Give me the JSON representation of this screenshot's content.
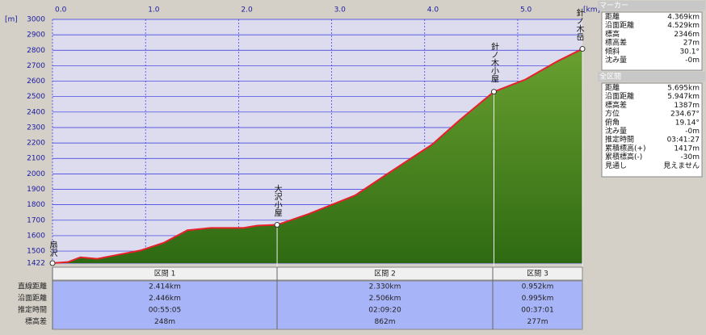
{
  "chart_data": {
    "type": "area",
    "y_label": "[m]",
    "x_label": "[km]",
    "x": [
      0,
      0.17,
      0.3,
      0.48,
      0.65,
      0.95,
      1.2,
      1.45,
      1.7,
      2.05,
      2.2,
      2.414,
      2.75,
      3.0,
      3.25,
      3.6,
      4.08,
      4.38,
      4.744,
      5.08,
      5.43,
      5.695
    ],
    "values": [
      1422,
      1430,
      1460,
      1450,
      1470,
      1505,
      1555,
      1635,
      1650,
      1650,
      1665,
      1670,
      1740,
      1800,
      1860,
      2000,
      2190,
      2350,
      2532,
      2610,
      2730,
      2809
    ],
    "color": "#e8202a",
    "fill_color": "#6aa030",
    "xlim": [
      0,
      5.695
    ],
    "ylim": [
      1422,
      3000
    ],
    "xticks": [
      {
        "value": 0,
        "label": "0.0"
      },
      {
        "value": 1,
        "label": "1.0"
      },
      {
        "value": 2,
        "label": "2.0"
      },
      {
        "value": 3,
        "label": "3.0"
      },
      {
        "value": 4,
        "label": "4.0"
      },
      {
        "value": 5,
        "label": "5.0"
      }
    ],
    "yticks": [
      1422,
      1500,
      1600,
      1700,
      1800,
      1900,
      2000,
      2100,
      2200,
      2300,
      2400,
      2500,
      2600,
      2700,
      2800,
      2900,
      3000
    ],
    "grid": true,
    "waypoints": [
      {
        "label": "扇沢",
        "x": 0,
        "y": 1422
      },
      {
        "label": "大沢小屋",
        "x": 2.414,
        "y": 1670
      },
      {
        "label": "針ノ木小屋",
        "x": 4.744,
        "y": 2532
      },
      {
        "label": "針ノ木岳",
        "x": 5.695,
        "y": 2809
      }
    ]
  },
  "table": {
    "header": [
      "区間 1",
      "区間 2",
      "区間 3"
    ],
    "rows": [
      {
        "label": "直線距離",
        "cells": [
          "2.414km",
          "2.330km",
          "0.952km"
        ]
      },
      {
        "label": "沿面距離",
        "cells": [
          "2.446km",
          "2.506km",
          "0.995km"
        ]
      },
      {
        "label": "推定時間",
        "cells": [
          "00:55:05",
          "02:09:20",
          "00:37:01"
        ]
      },
      {
        "label": "標高差",
        "cells": [
          "248m",
          "862m",
          "277m"
        ]
      }
    ]
  },
  "marker": {
    "title": "マーカー",
    "rows": [
      [
        "距離",
        "4.369km"
      ],
      [
        "沿面距離",
        "4.529km"
      ],
      [
        "標高",
        "2346m"
      ],
      [
        "標高差",
        "27m"
      ],
      [
        "傾斜",
        "30.1°"
      ],
      [
        "沈み量",
        "-0m"
      ]
    ]
  },
  "total": {
    "title": "全区間",
    "rows": [
      [
        "距離",
        "5.695km"
      ],
      [
        "沿面距離",
        "5.947km"
      ],
      [
        "標高差",
        "1387m"
      ],
      [
        "方位",
        "234.67°"
      ],
      [
        "俯角",
        "19.14°"
      ],
      [
        "沈み量",
        "-0m"
      ],
      [
        "推定時間",
        "03:41:27"
      ],
      [
        "累積標高(+)",
        "1417m"
      ],
      [
        "累積標高(-)",
        "-30m"
      ],
      [
        "見通し",
        "見えません"
      ]
    ]
  }
}
